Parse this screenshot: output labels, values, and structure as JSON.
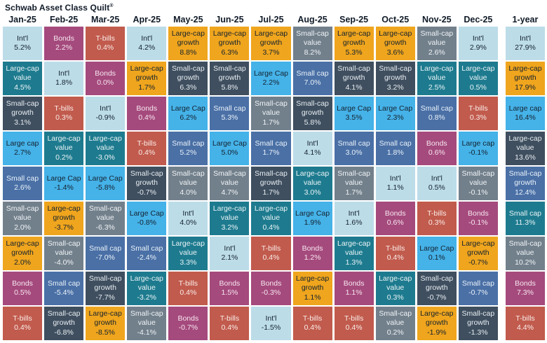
{
  "title": {
    "text": "Schwab Asset Class Quilt",
    "registered_mark": "®"
  },
  "palette": {
    "intl": {
      "bg": "#BCDCE8",
      "fg": "#15222F"
    },
    "bonds": {
      "bg": "#A54A7D",
      "fg": "#F6E7EF"
    },
    "tbills": {
      "bg": "#C15B4D",
      "fg": "#FAEDE9"
    },
    "large_cap_growth": {
      "bg": "#EFA51D",
      "fg": "#15222F"
    },
    "large_cap_value": {
      "bg": "#1E7B8F",
      "fg": "#EBF4F6"
    },
    "small_cap_growth": {
      "bg": "#3F4F5F",
      "fg": "#E8EDF2"
    },
    "small_cap_value": {
      "bg": "#72808C",
      "fg": "#F0F3F5"
    },
    "large_cap": {
      "bg": "#45B2E8",
      "fg": "#15222F"
    },
    "small_cap": {
      "bg": "#4A70A6",
      "fg": "#EAF1F8"
    }
  },
  "chart_data": {
    "type": "table",
    "title": "Schwab Asset Class Quilt®",
    "columns": [
      "Jan-25",
      "Feb-25",
      "Mar-25",
      "Apr-25",
      "May-25",
      "Jun-25",
      "Jul-25",
      "Aug-25",
      "Sep-25",
      "Oct-25",
      "Nov-25",
      "Dec-25",
      "1-year"
    ],
    "cell_format": [
      "label",
      "value",
      "color_key"
    ],
    "rows": [
      [
        [
          "Int'l",
          "5.2%",
          "intl"
        ],
        [
          "Bonds",
          "2.2%",
          "bonds"
        ],
        [
          "T-bills",
          "0.4%",
          "tbills"
        ],
        [
          "Int'l",
          "4.2%",
          "intl"
        ],
        [
          "Large-cap growth",
          "8.8%",
          "large_cap_growth"
        ],
        [
          "Large-cap growth",
          "6.3%",
          "large_cap_growth"
        ],
        [
          "Large-cap growth",
          "3.7%",
          "large_cap_growth"
        ],
        [
          "Small-cap value",
          "8.2%",
          "small_cap_value"
        ],
        [
          "Large-cap growth",
          "5.3%",
          "large_cap_growth"
        ],
        [
          "Large-cap growth",
          "3.6%",
          "large_cap_growth"
        ],
        [
          "Small-cap value",
          "2.6%",
          "small_cap_value"
        ],
        [
          "Int'l",
          "2.9%",
          "intl"
        ],
        [
          "Int'l",
          "27.9%",
          "intl"
        ]
      ],
      [
        [
          "Large-cap value",
          "4.5%",
          "large_cap_value"
        ],
        [
          "Int'l",
          "1.8%",
          "intl"
        ],
        [
          "Bonds",
          "0.0%",
          "bonds"
        ],
        [
          "Large-cap growth",
          "1.7%",
          "large_cap_growth"
        ],
        [
          "Small-cap growth",
          "6.3%",
          "small_cap_growth"
        ],
        [
          "Small-cap growth",
          "5.8%",
          "small_cap_growth"
        ],
        [
          "Large Cap",
          "2.2%",
          "large_cap"
        ],
        [
          "Small cap",
          "7.0%",
          "small_cap"
        ],
        [
          "Small-cap growth",
          "4.1%",
          "small_cap_growth"
        ],
        [
          "Small-cap growth",
          "3.2%",
          "small_cap_growth"
        ],
        [
          "Large-cap value",
          "2.5%",
          "large_cap_value"
        ],
        [
          "Large-cap value",
          "0.5%",
          "large_cap_value"
        ],
        [
          "Large-cap growth",
          "17.9%",
          "large_cap_growth"
        ]
      ],
      [
        [
          "Small-cap growth",
          "3.1%",
          "small_cap_growth"
        ],
        [
          "T-bills",
          "0.3%",
          "tbills"
        ],
        [
          "Int'l",
          "-0.9%",
          "intl"
        ],
        [
          "Bonds",
          "0.4%",
          "bonds"
        ],
        [
          "Large Cap",
          "6.2%",
          "large_cap"
        ],
        [
          "Small cap",
          "5.3%",
          "small_cap"
        ],
        [
          "Small-cap value",
          "1.7%",
          "small_cap_value"
        ],
        [
          "Small-cap growth",
          "5.8%",
          "small_cap_growth"
        ],
        [
          "Large Cap",
          "3.5%",
          "large_cap"
        ],
        [
          "Large Cap",
          "2.3%",
          "large_cap"
        ],
        [
          "Small cap",
          "0.8%",
          "small_cap"
        ],
        [
          "T-bills",
          "0.3%",
          "tbills"
        ],
        [
          "Large cap",
          "16.4%",
          "large_cap"
        ]
      ],
      [
        [
          "Large cap",
          "2.7%",
          "large_cap"
        ],
        [
          "Large-cap value",
          "0.2%",
          "large_cap_value"
        ],
        [
          "Large-cap value",
          "-3.0%",
          "large_cap_value"
        ],
        [
          "T-bills",
          "0.4%",
          "tbills"
        ],
        [
          "Small cap",
          "5.2%",
          "small_cap"
        ],
        [
          "Large Cap",
          "5.0%",
          "large_cap"
        ],
        [
          "Small cap",
          "1.7%",
          "small_cap"
        ],
        [
          "Int'l",
          "4.1%",
          "intl"
        ],
        [
          "Small cap",
          "3.0%",
          "small_cap"
        ],
        [
          "Small cap",
          "1.8%",
          "small_cap"
        ],
        [
          "Bonds",
          "0.6%",
          "bonds"
        ],
        [
          "Large cap",
          "-0.1%",
          "large_cap"
        ],
        [
          "Large-cap value",
          "13.6%",
          "small_cap_growth"
        ]
      ],
      [
        [
          "Small cap",
          "2.6%",
          "small_cap"
        ],
        [
          "Large Cap",
          "-1.4%",
          "large_cap"
        ],
        [
          "Large Cap",
          "-5.8%",
          "large_cap"
        ],
        [
          "Small-cap growth",
          "-0.7%",
          "small_cap_growth"
        ],
        [
          "Small-cap value",
          "4.0%",
          "small_cap_value"
        ],
        [
          "Small-cap value",
          "4.7%",
          "small_cap_value"
        ],
        [
          "Small-cap growth",
          "1.7%",
          "small_cap_growth"
        ],
        [
          "Large-cap value",
          "3.0%",
          "large_cap_value"
        ],
        [
          "Small-cap value",
          "1.7%",
          "small_cap_value"
        ],
        [
          "Int'l",
          "1.1%",
          "intl"
        ],
        [
          "Int'l",
          "0.5%",
          "intl"
        ],
        [
          "Small-cap value",
          "-0.1%",
          "small_cap_value"
        ],
        [
          "Small-cap growth",
          "12.4%",
          "small_cap"
        ]
      ],
      [
        [
          "Small-cap value",
          "2.0%",
          "small_cap_value"
        ],
        [
          "Large-cap growth",
          "-3.7%",
          "large_cap_growth"
        ],
        [
          "Small-cap value",
          "-6.3%",
          "small_cap_value"
        ],
        [
          "Large Cap",
          "-0.8%",
          "large_cap"
        ],
        [
          "Int'l",
          "4.0%",
          "intl"
        ],
        [
          "Large-cap value",
          "3.2%",
          "large_cap_value"
        ],
        [
          "Large-cap value",
          "0.4%",
          "large_cap_value"
        ],
        [
          "Large Cap",
          "1.9%",
          "large_cap"
        ],
        [
          "Int'l",
          "1.6%",
          "intl"
        ],
        [
          "Bonds",
          "0.6%",
          "bonds"
        ],
        [
          "T-bills",
          "0.3%",
          "tbills"
        ],
        [
          "Bonds",
          "-0.1%",
          "bonds"
        ],
        [
          "Small cap",
          "11.3%",
          "large_cap_value"
        ]
      ],
      [
        [
          "Large-cap growth",
          "2.0%",
          "large_cap_growth"
        ],
        [
          "Small-cap value",
          "-4.0%",
          "small_cap_value"
        ],
        [
          "Small cap",
          "-7.0%",
          "small_cap"
        ],
        [
          "Small cap",
          "-2.4%",
          "small_cap"
        ],
        [
          "Large-cap value",
          "3.3%",
          "large_cap_value"
        ],
        [
          "Int'l",
          "2.1%",
          "intl"
        ],
        [
          "T-bills",
          "0.4%",
          "tbills"
        ],
        [
          "Bonds",
          "1.2%",
          "bonds"
        ],
        [
          "Large-cap value",
          "1.3%",
          "large_cap_value"
        ],
        [
          "T-bills",
          "0.4%",
          "tbills"
        ],
        [
          "Large Cap",
          "0.1%",
          "large_cap"
        ],
        [
          "Large-cap growth",
          "-0.7%",
          "large_cap_growth"
        ],
        [
          "Small-cap value",
          "10.2%",
          "small_cap_value"
        ]
      ],
      [
        [
          "Bonds",
          "0.5%",
          "bonds"
        ],
        [
          "Small cap",
          "-5.4%",
          "small_cap"
        ],
        [
          "Small-cap growth",
          "-7.7%",
          "small_cap_growth"
        ],
        [
          "Large-cap value",
          "-3.2%",
          "large_cap_value"
        ],
        [
          "T-bills",
          "0.4%",
          "tbills"
        ],
        [
          "Bonds",
          "1.5%",
          "bonds"
        ],
        [
          "Bonds",
          "-0.3%",
          "bonds"
        ],
        [
          "Large-cap growth",
          "1.1%",
          "large_cap_growth"
        ],
        [
          "Bonds",
          "1.1%",
          "bonds"
        ],
        [
          "Large-cap value",
          "0.3%",
          "large_cap_value"
        ],
        [
          "Small-cap growth",
          "-0.7%",
          "small_cap_growth"
        ],
        [
          "Small cap",
          "-0.7%",
          "small_cap"
        ],
        [
          "Bonds",
          "7.3%",
          "bonds"
        ]
      ],
      [
        [
          "T-bills",
          "0.4%",
          "tbills"
        ],
        [
          "Small-cap growth",
          "-6.8%",
          "small_cap_growth"
        ],
        [
          "Large-cap growth",
          "-8.5%",
          "large_cap_growth"
        ],
        [
          "Small-cap value",
          "-4.1%",
          "small_cap_value"
        ],
        [
          "Bonds",
          "-0.7%",
          "bonds"
        ],
        [
          "T-bills",
          "0.4%",
          "tbills"
        ],
        [
          "Int'l",
          "-1.5%",
          "intl"
        ],
        [
          "T-bills",
          "0.4%",
          "tbills"
        ],
        [
          "T-bills",
          "0.4%",
          "tbills"
        ],
        [
          "Small-cap value",
          "0.2%",
          "small_cap_value"
        ],
        [
          "Large-cap growth",
          "-1.9%",
          "large_cap_growth"
        ],
        [
          "Small-cap growth",
          "-1.3%",
          "small_cap_growth"
        ],
        [
          "T-bills",
          "4.4%",
          "tbills"
        ]
      ]
    ]
  }
}
